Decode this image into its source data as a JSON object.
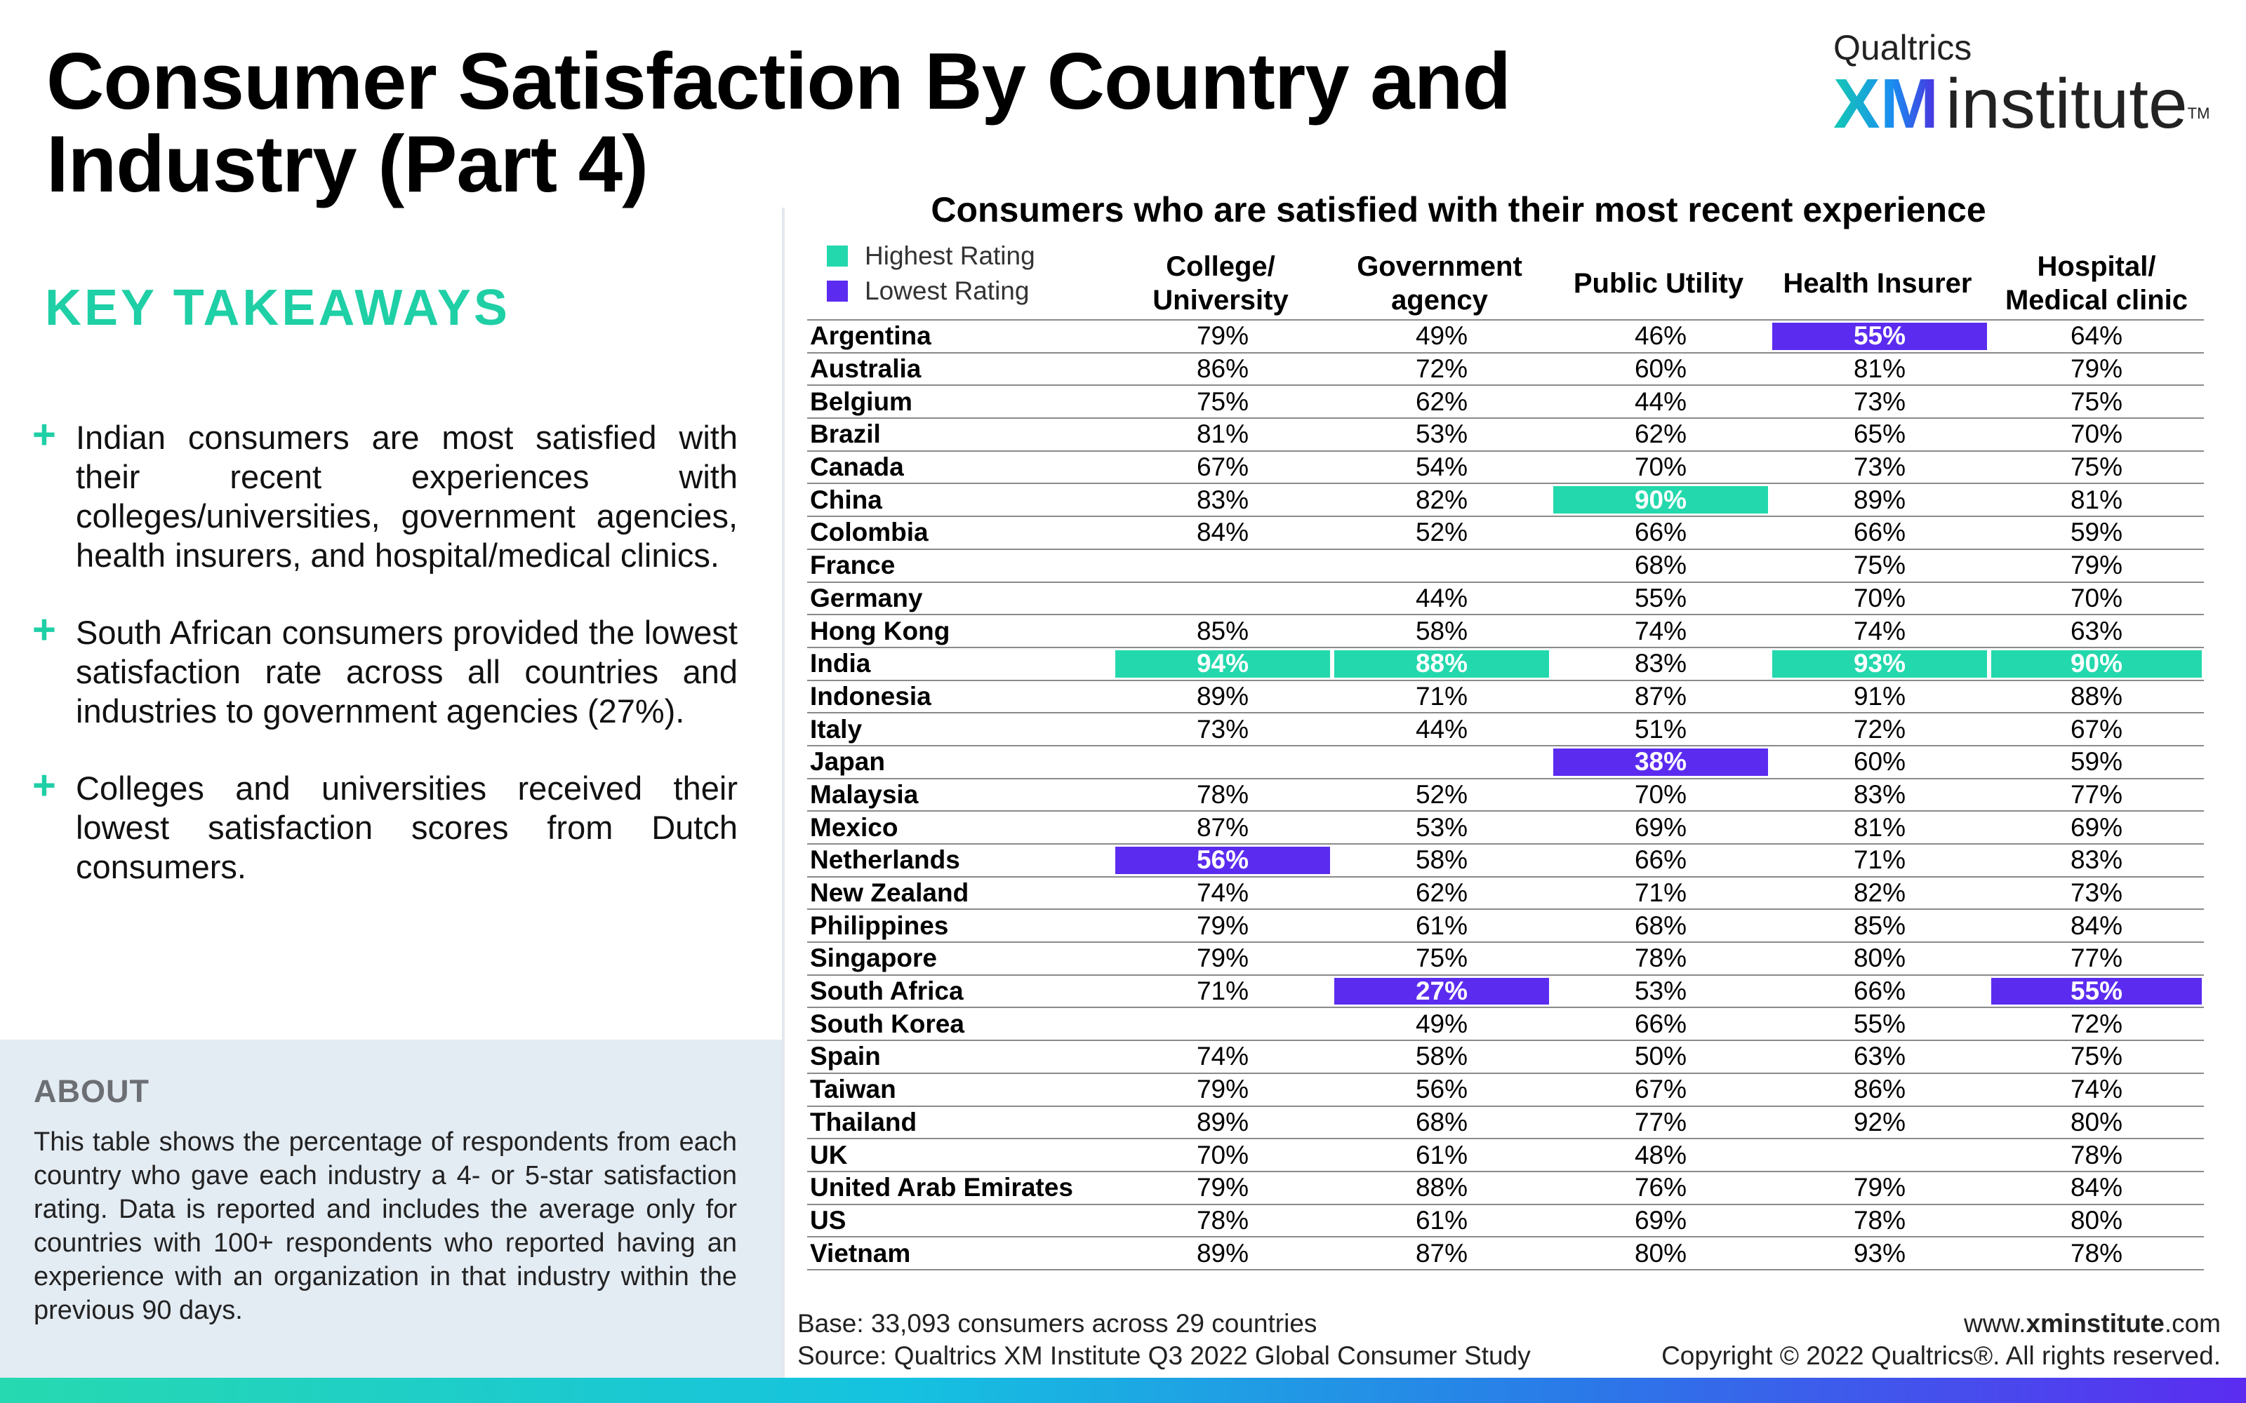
{
  "title": "Consumer Satisfaction By Country and Industry (Part 4)",
  "logo": {
    "top": "Qualtrics",
    "xm": "XM",
    "institute": "institute",
    "tm": "TM"
  },
  "key_takeaways": {
    "heading": "KEY TAKEAWAYS",
    "items": [
      "Indian consumers are most satisfied with their recent experiences with colleges/universities, government agencies, health insurers, and hospital/medical clinics.",
      "South African consumers provided the lowest satisfaction rate across all countries and industries to government agencies (27%).",
      "Colleges and universities received their lowest satisfaction scores from Dutch consumers."
    ]
  },
  "about": {
    "heading": "ABOUT",
    "text": "This table shows the percentage of respondents from each country who gave each industry a 4- or 5-star satisfaction rating. Data is reported and includes the average only for countries with 100+ respondents who reported having an experience with an organization in that industry within the previous 90 days."
  },
  "colors": {
    "highest": "#23d8ad",
    "lowest": "#5b2cf0",
    "accent": "#1fcfa6"
  },
  "chart_data": {
    "type": "table",
    "title": "Consumers who are satisfied with their most recent experience",
    "legend": [
      {
        "label": "Highest Rating",
        "color": "#23d8ad"
      },
      {
        "label": "Lowest Rating",
        "color": "#5b2cf0"
      }
    ],
    "columns": [
      "College/ University",
      "Government agency",
      "Public Utility",
      "Health Insurer",
      "Hospital/ Medical clinic"
    ],
    "rows": [
      {
        "country": "Argentina",
        "values": [
          "79%",
          "49%",
          "46%",
          "55%",
          "64%"
        ],
        "highlight": [
          "",
          "",
          "",
          "low",
          ""
        ]
      },
      {
        "country": "Australia",
        "values": [
          "86%",
          "72%",
          "60%",
          "81%",
          "79%"
        ],
        "highlight": [
          "",
          "",
          "",
          "",
          ""
        ]
      },
      {
        "country": "Belgium",
        "values": [
          "75%",
          "62%",
          "44%",
          "73%",
          "75%"
        ],
        "highlight": [
          "",
          "",
          "",
          "",
          ""
        ]
      },
      {
        "country": "Brazil",
        "values": [
          "81%",
          "53%",
          "62%",
          "65%",
          "70%"
        ],
        "highlight": [
          "",
          "",
          "",
          "",
          ""
        ]
      },
      {
        "country": "Canada",
        "values": [
          "67%",
          "54%",
          "70%",
          "73%",
          "75%"
        ],
        "highlight": [
          "",
          "",
          "",
          "",
          ""
        ]
      },
      {
        "country": "China",
        "values": [
          "83%",
          "82%",
          "90%",
          "89%",
          "81%"
        ],
        "highlight": [
          "",
          "",
          "high",
          "",
          ""
        ]
      },
      {
        "country": "Colombia",
        "values": [
          "84%",
          "52%",
          "66%",
          "66%",
          "59%"
        ],
        "highlight": [
          "",
          "",
          "",
          "",
          ""
        ]
      },
      {
        "country": "France",
        "values": [
          "",
          "",
          "68%",
          "75%",
          "79%"
        ],
        "highlight": [
          "",
          "",
          "",
          "",
          ""
        ]
      },
      {
        "country": "Germany",
        "values": [
          "",
          "44%",
          "55%",
          "70%",
          "70%"
        ],
        "highlight": [
          "",
          "",
          "",
          "",
          ""
        ]
      },
      {
        "country": "Hong Kong",
        "values": [
          "85%",
          "58%",
          "74%",
          "74%",
          "63%"
        ],
        "highlight": [
          "",
          "",
          "",
          "",
          ""
        ]
      },
      {
        "country": "India",
        "values": [
          "94%",
          "88%",
          "83%",
          "93%",
          "90%"
        ],
        "highlight": [
          "high",
          "high",
          "",
          "high",
          "high"
        ]
      },
      {
        "country": "Indonesia",
        "values": [
          "89%",
          "71%",
          "87%",
          "91%",
          "88%"
        ],
        "highlight": [
          "",
          "",
          "",
          "",
          ""
        ]
      },
      {
        "country": "Italy",
        "values": [
          "73%",
          "44%",
          "51%",
          "72%",
          "67%"
        ],
        "highlight": [
          "",
          "",
          "",
          "",
          ""
        ]
      },
      {
        "country": "Japan",
        "values": [
          "",
          "",
          "38%",
          "60%",
          "59%"
        ],
        "highlight": [
          "",
          "",
          "low",
          "",
          ""
        ]
      },
      {
        "country": "Malaysia",
        "values": [
          "78%",
          "52%",
          "70%",
          "83%",
          "77%"
        ],
        "highlight": [
          "",
          "",
          "",
          "",
          ""
        ]
      },
      {
        "country": "Mexico",
        "values": [
          "87%",
          "53%",
          "69%",
          "81%",
          "69%"
        ],
        "highlight": [
          "",
          "",
          "",
          "",
          ""
        ]
      },
      {
        "country": "Netherlands",
        "values": [
          "56%",
          "58%",
          "66%",
          "71%",
          "83%"
        ],
        "highlight": [
          "low",
          "",
          "",
          "",
          ""
        ]
      },
      {
        "country": "New Zealand",
        "values": [
          "74%",
          "62%",
          "71%",
          "82%",
          "73%"
        ],
        "highlight": [
          "",
          "",
          "",
          "",
          ""
        ]
      },
      {
        "country": "Philippines",
        "values": [
          "79%",
          "61%",
          "68%",
          "85%",
          "84%"
        ],
        "highlight": [
          "",
          "",
          "",
          "",
          ""
        ]
      },
      {
        "country": "Singapore",
        "values": [
          "79%",
          "75%",
          "78%",
          "80%",
          "77%"
        ],
        "highlight": [
          "",
          "",
          "",
          "",
          ""
        ]
      },
      {
        "country": "South Africa",
        "values": [
          "71%",
          "27%",
          "53%",
          "66%",
          "55%"
        ],
        "highlight": [
          "",
          "low",
          "",
          "",
          "low"
        ]
      },
      {
        "country": "South Korea",
        "values": [
          "",
          "49%",
          "66%",
          "55%",
          "72%"
        ],
        "highlight": [
          "",
          "",
          "",
          "",
          ""
        ]
      },
      {
        "country": "Spain",
        "values": [
          "74%",
          "58%",
          "50%",
          "63%",
          "75%"
        ],
        "highlight": [
          "",
          "",
          "",
          "",
          ""
        ]
      },
      {
        "country": "Taiwan",
        "values": [
          "79%",
          "56%",
          "67%",
          "86%",
          "74%"
        ],
        "highlight": [
          "",
          "",
          "",
          "",
          ""
        ]
      },
      {
        "country": "Thailand",
        "values": [
          "89%",
          "68%",
          "77%",
          "92%",
          "80%"
        ],
        "highlight": [
          "",
          "",
          "",
          "",
          ""
        ]
      },
      {
        "country": "UK",
        "values": [
          "70%",
          "61%",
          "48%",
          "",
          "78%"
        ],
        "highlight": [
          "",
          "",
          "",
          "",
          ""
        ]
      },
      {
        "country": "United Arab Emirates",
        "values": [
          "79%",
          "88%",
          "76%",
          "79%",
          "84%"
        ],
        "highlight": [
          "",
          "",
          "",
          "",
          ""
        ]
      },
      {
        "country": "US",
        "values": [
          "78%",
          "61%",
          "69%",
          "78%",
          "80%"
        ],
        "highlight": [
          "",
          "",
          "",
          "",
          ""
        ]
      },
      {
        "country": "Vietnam",
        "values": [
          "89%",
          "87%",
          "80%",
          "93%",
          "78%"
        ],
        "highlight": [
          "",
          "",
          "",
          "",
          ""
        ]
      }
    ]
  },
  "footer": {
    "base": "Base: 33,093 consumers across 29 countries",
    "source": "Source: Qualtrics XM Institute Q3 2022 Global Consumer Study",
    "site_prefix": "www.",
    "site_bold": "xminstitute",
    "site_suffix": ".com",
    "copyright": "Copyright © 2022 Qualtrics®. All rights reserved."
  }
}
